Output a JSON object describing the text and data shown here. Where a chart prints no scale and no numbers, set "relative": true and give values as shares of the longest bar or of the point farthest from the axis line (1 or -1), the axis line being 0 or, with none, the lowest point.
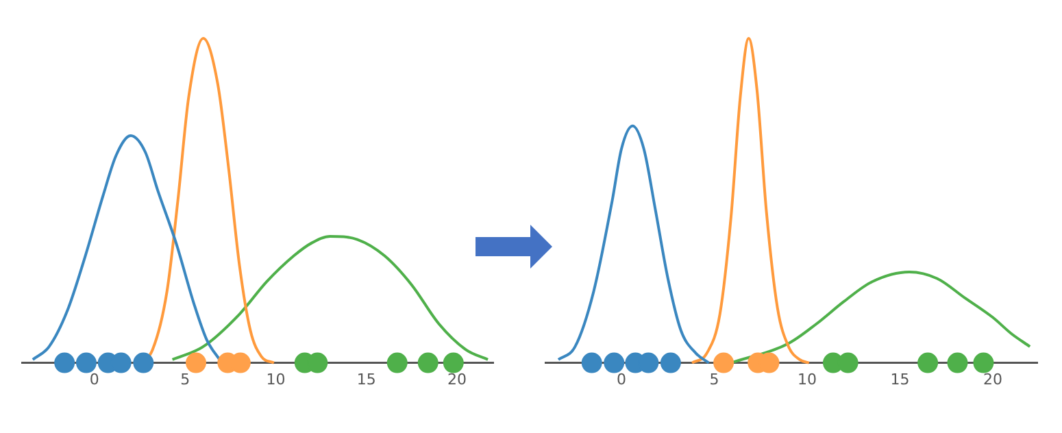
{
  "chart_data": [
    {
      "type": "line",
      "relative": true,
      "xlim": [
        -4,
        22
      ],
      "xticks": [
        0,
        5,
        10,
        15,
        20
      ],
      "grid": false,
      "legend": false,
      "marker": "none",
      "series": [
        {
          "type": "line",
          "color": "#3a87c0",
          "x": [
            -3.4,
            -2.5,
            -1.5,
            -0.5,
            0.5,
            1.2,
            2,
            2.8,
            3.5,
            4.5,
            5.5,
            6.2,
            6.9
          ],
          "values": [
            0.01,
            0.05,
            0.16,
            0.33,
            0.52,
            0.64,
            0.7,
            0.65,
            0.53,
            0.37,
            0.18,
            0.07,
            0.01
          ]
        },
        {
          "type": "line",
          "color": "#ff9a3c",
          "x": [
            2.4,
            3.2,
            4,
            4.6,
            5.2,
            6,
            6.8,
            7.4,
            8,
            8.6,
            9.2,
            9.9
          ],
          "values": [
            0,
            0.04,
            0.22,
            0.5,
            0.82,
            1,
            0.86,
            0.6,
            0.3,
            0.1,
            0.02,
            0
          ]
        },
        {
          "type": "line",
          "color": "#4fb04a",
          "x": [
            4.3,
            6,
            8,
            9.5,
            11,
            12,
            13,
            14.5,
            16,
            17.5,
            19,
            20.5,
            21.7
          ],
          "values": [
            0.01,
            0.05,
            0.15,
            0.25,
            0.33,
            0.37,
            0.39,
            0.38,
            0.33,
            0.24,
            0.12,
            0.04,
            0.01
          ]
        },
        {
          "type": "scatter",
          "marker": "circle",
          "color": "#3a87c0",
          "x": [
            -1.65,
            -0.45,
            0.75,
            1.47,
            2.7
          ],
          "values": [
            0,
            0,
            0,
            0,
            0
          ]
        },
        {
          "type": "scatter",
          "marker": "circle",
          "color": "#ffa04a",
          "x": [
            5.6,
            7.35,
            8.05
          ],
          "values": [
            0,
            0,
            0
          ]
        },
        {
          "type": "scatter",
          "marker": "circle",
          "color": "#4fb04a",
          "x": [
            11.6,
            12.3,
            16.7,
            18.4,
            19.8
          ],
          "values": [
            0,
            0,
            0,
            0,
            0
          ]
        }
      ]
    },
    {
      "type": "line",
      "relative": true,
      "xlim": [
        -4.1,
        22.4
      ],
      "xticks": [
        0,
        5,
        10,
        15,
        20
      ],
      "grid": false,
      "legend": false,
      "marker": "none",
      "series": [
        {
          "type": "line",
          "color": "#3a87c0",
          "x": [
            -3.4,
            -2.5,
            -1.5,
            -0.5,
            0,
            0.6,
            1.2,
            1.8,
            2.5,
            3.2,
            4,
            4.7
          ],
          "values": [
            0.01,
            0.05,
            0.22,
            0.5,
            0.66,
            0.73,
            0.66,
            0.48,
            0.26,
            0.1,
            0.03,
            0
          ]
        },
        {
          "type": "line",
          "color": "#ff9a3c",
          "x": [
            3.8,
            4.6,
            5.3,
            5.9,
            6.4,
            6.85,
            7.3,
            7.8,
            8.4,
            9,
            9.6,
            10.1
          ],
          "values": [
            0,
            0.03,
            0.15,
            0.45,
            0.82,
            1,
            0.84,
            0.47,
            0.17,
            0.05,
            0.01,
            0
          ]
        },
        {
          "type": "line",
          "color": "#4fb04a",
          "x": [
            5.9,
            9,
            10.5,
            12,
            13.5,
            15.5,
            17,
            18.5,
            20,
            21,
            22
          ],
          "values": [
            0,
            0.06,
            0.12,
            0.19,
            0.25,
            0.28,
            0.26,
            0.2,
            0.14,
            0.09,
            0.05
          ]
        },
        {
          "type": "scatter",
          "marker": "circle",
          "color": "#3a87c0",
          "x": [
            -1.6,
            -0.4,
            0.75,
            1.45,
            2.65
          ],
          "values": [
            0,
            0,
            0,
            0,
            0
          ]
        },
        {
          "type": "scatter",
          "marker": "circle",
          "color": "#ffa04a",
          "x": [
            5.5,
            7.35,
            7.95
          ],
          "values": [
            0,
            0,
            0
          ]
        },
        {
          "type": "scatter",
          "marker": "circle",
          "color": "#4fb04a",
          "x": [
            11.4,
            12.2,
            16.5,
            18.1,
            19.5
          ],
          "values": [
            0,
            0,
            0,
            0,
            0
          ]
        }
      ]
    }
  ]
}
